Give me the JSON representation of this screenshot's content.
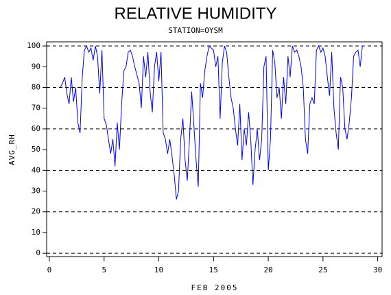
{
  "chart_data": {
    "type": "line",
    "title": "RELATIVE HUMIDITY",
    "subtitle": "STATION=OYSM",
    "x_label": "FEB 2005",
    "y_label": "AVG_RH",
    "xlim": [
      -0.25,
      30.4
    ],
    "ylim": [
      -1.6,
      102
    ],
    "xticks": [
      0,
      5,
      10,
      15,
      20,
      25,
      30
    ],
    "yticks": [
      0,
      10,
      20,
      30,
      40,
      50,
      60,
      70,
      80,
      90,
      100
    ],
    "grid": true,
    "series": [
      {
        "name": "AVG_RH",
        "color": "#0000ff",
        "x": [
          1.0,
          1.2,
          1.4,
          1.6,
          1.8,
          2.0,
          2.2,
          2.4,
          2.6,
          2.8,
          3.0,
          3.2,
          3.4,
          3.6,
          3.8,
          4.0,
          4.2,
          4.4,
          4.6,
          4.8,
          5.0,
          5.2,
          5.4,
          5.6,
          5.8,
          6.0,
          6.2,
          6.4,
          6.6,
          6.8,
          7.0,
          7.2,
          7.4,
          7.6,
          7.8,
          8.0,
          8.2,
          8.4,
          8.6,
          8.8,
          9.0,
          9.2,
          9.4,
          9.6,
          9.8,
          10.0,
          10.2,
          10.4,
          10.6,
          10.8,
          11.0,
          11.2,
          11.4,
          11.6,
          11.8,
          12.0,
          12.2,
          12.4,
          12.6,
          12.8,
          13.0,
          13.2,
          13.4,
          13.6,
          13.8,
          14.0,
          14.2,
          14.4,
          14.6,
          14.8,
          15.0,
          15.2,
          15.4,
          15.6,
          15.8,
          16.0,
          16.2,
          16.4,
          16.6,
          16.8,
          17.0,
          17.2,
          17.4,
          17.6,
          17.8,
          18.0,
          18.2,
          18.4,
          18.6,
          18.8,
          19.0,
          19.2,
          19.4,
          19.6,
          19.8,
          20.0,
          20.2,
          20.4,
          20.6,
          20.8,
          21.0,
          21.2,
          21.4,
          21.6,
          21.8,
          22.0,
          22.2,
          22.4,
          22.6,
          22.8,
          23.0,
          23.2,
          23.4,
          23.6,
          23.8,
          24.0,
          24.2,
          24.4,
          24.6,
          24.8,
          25.0,
          25.2,
          25.4,
          25.6,
          25.8,
          26.0,
          26.2,
          26.4,
          26.6,
          26.8,
          27.0,
          27.2,
          27.4,
          27.6,
          27.8,
          28.0,
          28.2,
          28.4,
          28.6,
          28.8
        ],
        "values": [
          80,
          82,
          85,
          77,
          72,
          85,
          73,
          80,
          63,
          58,
          85,
          98,
          100,
          97,
          99,
          93,
          100,
          95,
          77,
          98,
          65,
          62,
          55,
          48,
          55,
          42,
          63,
          50,
          72,
          88,
          90,
          97,
          98,
          95,
          90,
          86,
          82,
          70,
          95,
          85,
          97,
          78,
          68,
          90,
          97,
          83,
          97,
          58,
          55,
          48,
          55,
          47,
          38,
          26,
          30,
          55,
          65,
          45,
          35,
          55,
          78,
          62,
          45,
          32,
          82,
          75,
          88,
          95,
          100,
          99,
          98,
          90,
          95,
          65,
          92,
          100,
          97,
          85,
          75,
          70,
          60,
          52,
          72,
          45,
          60,
          52,
          68,
          55,
          33,
          50,
          60,
          45,
          55,
          90,
          95,
          40,
          55,
          98,
          92,
          75,
          80,
          65,
          85,
          72,
          95,
          85,
          100,
          97,
          98,
          95,
          90,
          80,
          55,
          48,
          72,
          75,
          72,
          98,
          100,
          97,
          99,
          95,
          85,
          76,
          97,
          70,
          58,
          50,
          85,
          80,
          60,
          55,
          63,
          75,
          95,
          97,
          98,
          90,
          100,
          100
        ]
      }
    ]
  }
}
